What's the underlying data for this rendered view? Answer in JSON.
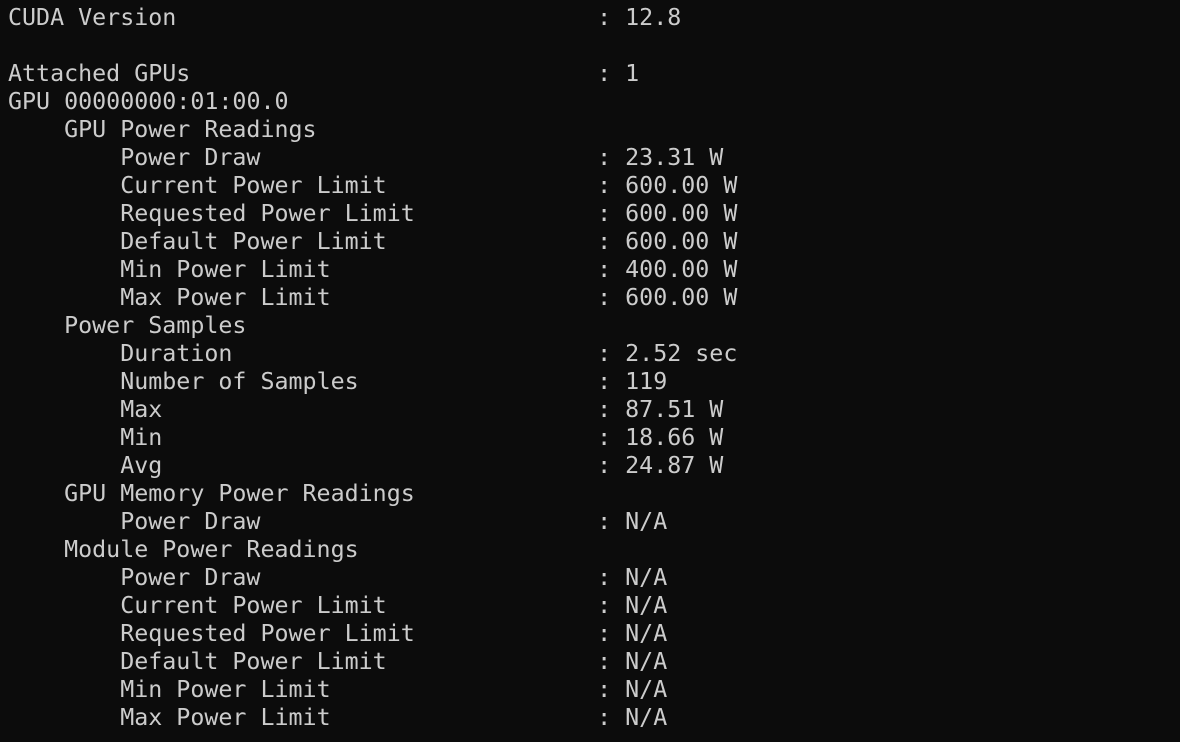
{
  "terminal": {
    "colors": {
      "background": "#0C0C0C",
      "foreground": "#CCCCCC"
    },
    "separator": ": ",
    "rows": [
      {
        "indent": 0,
        "label": "CUDA Version",
        "value": "12.8"
      },
      {
        "blank": true
      },
      {
        "indent": 0,
        "label": "Attached GPUs",
        "value": "1"
      },
      {
        "indent": 0,
        "label": "GPU 00000000:01:00.0"
      },
      {
        "indent": 1,
        "label": "GPU Power Readings"
      },
      {
        "indent": 2,
        "label": "Power Draw",
        "value": "23.31 W"
      },
      {
        "indent": 2,
        "label": "Current Power Limit",
        "value": "600.00 W"
      },
      {
        "indent": 2,
        "label": "Requested Power Limit",
        "value": "600.00 W"
      },
      {
        "indent": 2,
        "label": "Default Power Limit",
        "value": "600.00 W"
      },
      {
        "indent": 2,
        "label": "Min Power Limit",
        "value": "400.00 W"
      },
      {
        "indent": 2,
        "label": "Max Power Limit",
        "value": "600.00 W"
      },
      {
        "indent": 1,
        "label": "Power Samples"
      },
      {
        "indent": 2,
        "label": "Duration",
        "value": "2.52 sec"
      },
      {
        "indent": 2,
        "label": "Number of Samples",
        "value": "119"
      },
      {
        "indent": 2,
        "label": "Max",
        "value": "87.51 W"
      },
      {
        "indent": 2,
        "label": "Min",
        "value": "18.66 W"
      },
      {
        "indent": 2,
        "label": "Avg",
        "value": "24.87 W"
      },
      {
        "indent": 1,
        "label": "GPU Memory Power Readings"
      },
      {
        "indent": 2,
        "label": "Power Draw",
        "value": "N/A"
      },
      {
        "indent": 1,
        "label": "Module Power Readings"
      },
      {
        "indent": 2,
        "label": "Power Draw",
        "value": "N/A"
      },
      {
        "indent": 2,
        "label": "Current Power Limit",
        "value": "N/A"
      },
      {
        "indent": 2,
        "label": "Requested Power Limit",
        "value": "N/A"
      },
      {
        "indent": 2,
        "label": "Default Power Limit",
        "value": "N/A"
      },
      {
        "indent": 2,
        "label": "Min Power Limit",
        "value": "N/A"
      },
      {
        "indent": 2,
        "label": "Max Power Limit",
        "value": "N/A"
      }
    ]
  }
}
